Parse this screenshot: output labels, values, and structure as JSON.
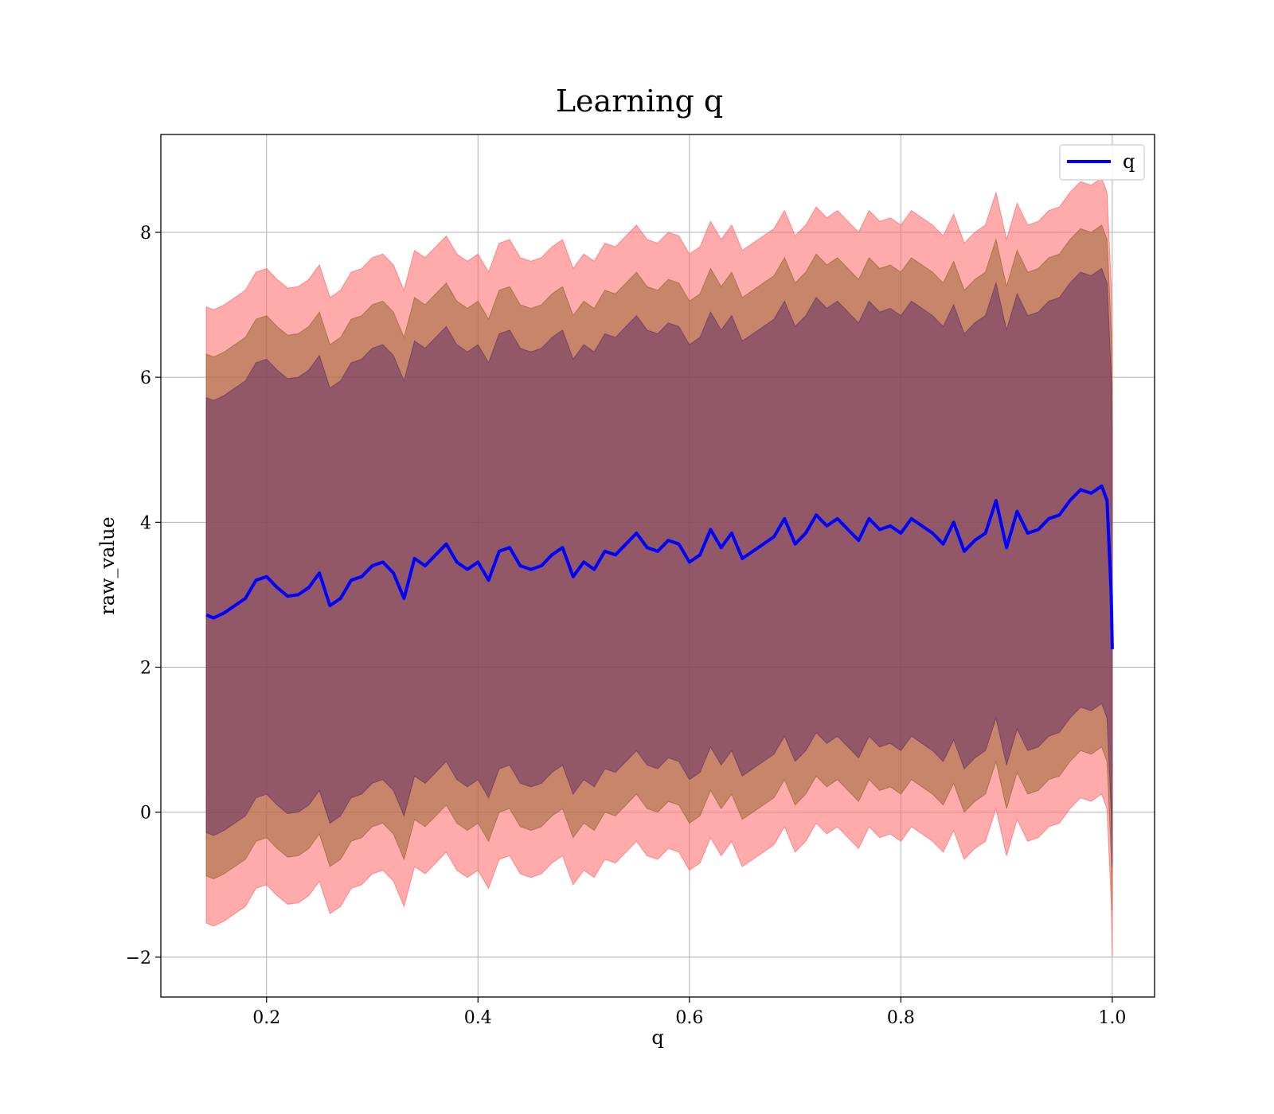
{
  "chart_data": {
    "type": "line",
    "title": "Learning q",
    "xlabel": "q",
    "ylabel": "raw_value",
    "xlim": [
      0.1,
      1.04
    ],
    "ylim": [
      -2.55,
      9.35
    ],
    "xticks": [
      0.2,
      0.4,
      0.6,
      0.8,
      1.0
    ],
    "xtick_labels": [
      "0.2",
      "0.4",
      "0.6",
      "0.8",
      "1.0"
    ],
    "yticks": [
      -2,
      0,
      2,
      4,
      6,
      8
    ],
    "ytick_labels": [
      "−2",
      "0",
      "2",
      "4",
      "6",
      "8"
    ],
    "grid": true,
    "legend": {
      "position": "top-right",
      "entries": [
        "q"
      ]
    },
    "series": [
      {
        "name": "q",
        "color": "#0000ff",
        "x": [
          0.143,
          0.15,
          0.16,
          0.17,
          0.18,
          0.19,
          0.2,
          0.21,
          0.22,
          0.23,
          0.24,
          0.25,
          0.26,
          0.27,
          0.28,
          0.29,
          0.3,
          0.31,
          0.32,
          0.33,
          0.34,
          0.35,
          0.36,
          0.37,
          0.38,
          0.39,
          0.4,
          0.41,
          0.42,
          0.43,
          0.44,
          0.45,
          0.46,
          0.47,
          0.48,
          0.49,
          0.5,
          0.51,
          0.52,
          0.53,
          0.54,
          0.55,
          0.56,
          0.57,
          0.58,
          0.59,
          0.6,
          0.61,
          0.62,
          0.63,
          0.64,
          0.65,
          0.66,
          0.67,
          0.68,
          0.69,
          0.7,
          0.71,
          0.72,
          0.73,
          0.74,
          0.75,
          0.76,
          0.77,
          0.78,
          0.79,
          0.8,
          0.81,
          0.82,
          0.83,
          0.84,
          0.85,
          0.86,
          0.87,
          0.88,
          0.89,
          0.9,
          0.91,
          0.92,
          0.93,
          0.94,
          0.95,
          0.96,
          0.97,
          0.98,
          0.99,
          0.995,
          0.999,
          1.0
        ],
        "values": [
          2.72,
          2.68,
          2.75,
          2.85,
          2.95,
          3.2,
          3.25,
          3.1,
          2.98,
          3.0,
          3.1,
          3.3,
          2.85,
          2.95,
          3.2,
          3.25,
          3.4,
          3.45,
          3.3,
          2.95,
          3.5,
          3.4,
          3.55,
          3.7,
          3.45,
          3.35,
          3.45,
          3.2,
          3.6,
          3.65,
          3.4,
          3.35,
          3.4,
          3.55,
          3.65,
          3.25,
          3.45,
          3.35,
          3.6,
          3.55,
          3.7,
          3.85,
          3.65,
          3.6,
          3.75,
          3.7,
          3.45,
          3.55,
          3.9,
          3.65,
          3.85,
          3.5,
          3.6,
          3.7,
          3.8,
          4.05,
          3.7,
          3.85,
          4.1,
          3.95,
          4.05,
          3.9,
          3.75,
          4.05,
          3.9,
          3.95,
          3.85,
          4.05,
          3.95,
          3.85,
          3.7,
          4.0,
          3.6,
          3.75,
          3.85,
          4.3,
          3.65,
          4.15,
          3.85,
          3.9,
          4.05,
          4.1,
          4.3,
          4.45,
          4.4,
          4.5,
          4.3,
          3.0,
          2.25
        ]
      },
      {
        "name": "",
        "kind": "band",
        "color": "#ff6666",
        "opacity": 0.55,
        "center": "q",
        "offset": 4.25
      },
      {
        "name": "",
        "kind": "band",
        "color": "#996633",
        "opacity": 0.55,
        "center": "q",
        "offset": 3.6
      },
      {
        "name": "",
        "kind": "band",
        "color": "#663366",
        "opacity": 0.55,
        "center": "q",
        "offset": 3.0
      }
    ]
  }
}
